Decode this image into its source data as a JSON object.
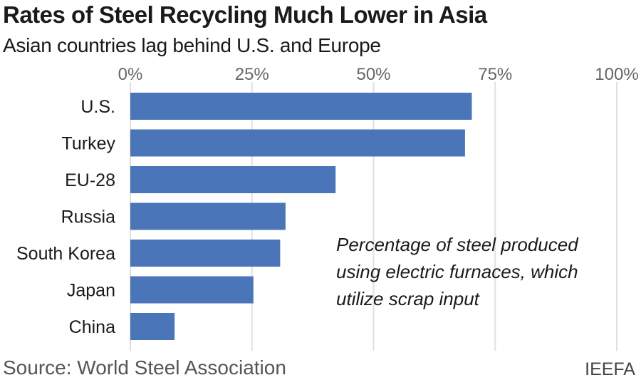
{
  "chart_data": {
    "type": "bar",
    "orientation": "horizontal",
    "title": "Rates of Steel Recycling Much Lower in Asia",
    "subtitle": "Asian countries lag behind U.S. and Europe",
    "categories": [
      "U.S.",
      "Turkey",
      "EU-28",
      "Russia",
      "South Korea",
      "Japan",
      "China"
    ],
    "values": [
      70.2,
      68.8,
      42.2,
      31.9,
      30.8,
      25.3,
      9.1
    ],
    "xlim": [
      0,
      100
    ],
    "ticks": [
      0,
      25,
      50,
      75,
      100
    ],
    "tick_labels": [
      "0%",
      "25%",
      "50%",
      "75%",
      "100%"
    ],
    "grid": true,
    "bar_color": "#4a76b9",
    "annotation": "Percentage of steel produced\nusing electric furnaces, which\nutilize scrap input",
    "source": "Source:  World Steel Association",
    "brand": "IEEFA"
  }
}
